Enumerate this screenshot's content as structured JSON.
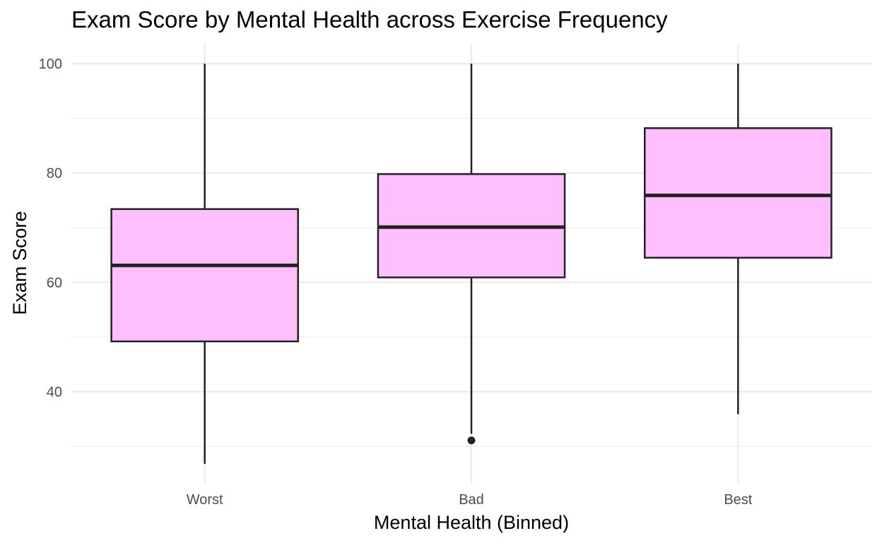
{
  "chart_data": {
    "type": "boxplot",
    "title": "Exam Score by Mental Health across Exercise Frequency",
    "xlabel": "Mental Health (Binned)",
    "ylabel": "Exam Score",
    "categories": [
      "Worst",
      "Bad",
      "Best"
    ],
    "ylim": [
      23.5,
      103.5
    ],
    "yticks": [
      40,
      60,
      80,
      100
    ],
    "yminor": [
      30,
      50,
      70,
      90
    ],
    "grid": true,
    "legend": "none",
    "fill_color": "#FFBFFF",
    "line_color": "#222222",
    "boxes": [
      {
        "category": "Worst",
        "whisker_low": 26.8,
        "q1": 49.2,
        "median": 63.1,
        "q3": 73.4,
        "whisker_high": 100,
        "outliers": []
      },
      {
        "category": "Bad",
        "whisker_low": 32.3,
        "q1": 60.9,
        "median": 70.1,
        "q3": 79.8,
        "whisker_high": 100,
        "outliers": [
          31.1
        ]
      },
      {
        "category": "Best",
        "whisker_low": 35.9,
        "q1": 64.5,
        "median": 75.9,
        "q3": 88.2,
        "whisker_high": 100,
        "outliers": []
      }
    ]
  }
}
